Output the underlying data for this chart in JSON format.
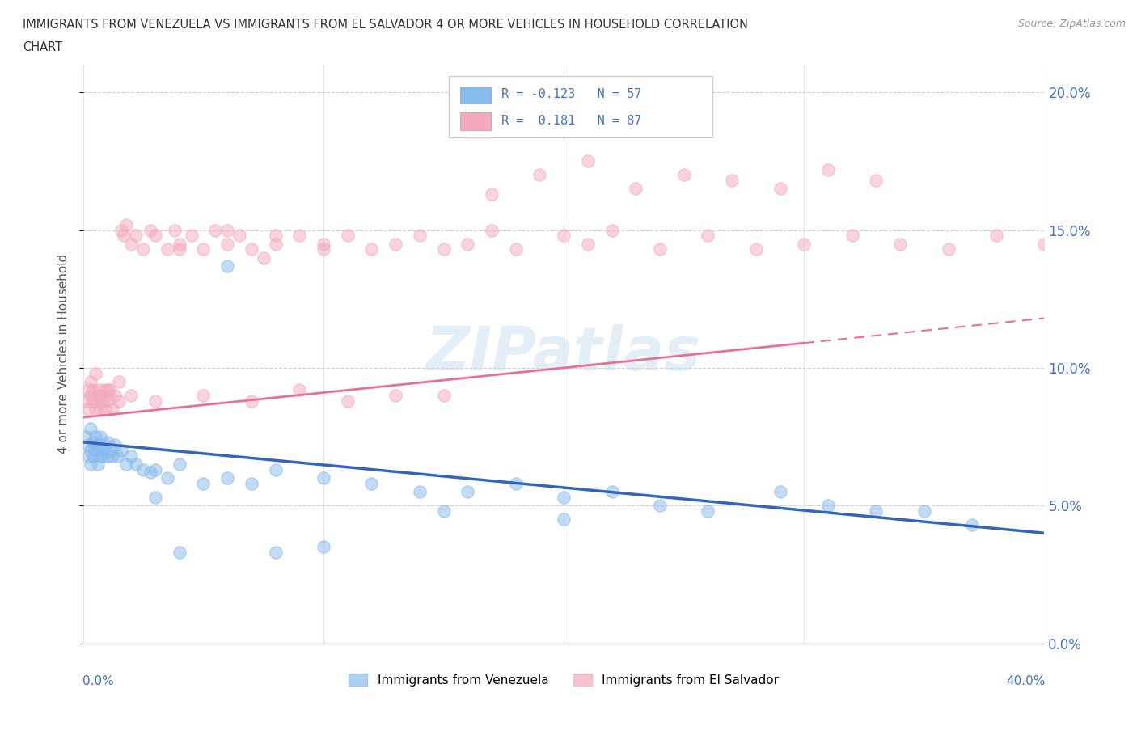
{
  "title_line1": "IMMIGRANTS FROM VENEZUELA VS IMMIGRANTS FROM EL SALVADOR 4 OR MORE VEHICLES IN HOUSEHOLD CORRELATION",
  "title_line2": "CHART",
  "source": "Source: ZipAtlas.com",
  "ylabel_label": "4 or more Vehicles in Household",
  "xmin": 0.0,
  "xmax": 0.4,
  "ymin": 0.0,
  "ymax": 0.21,
  "yticks": [
    0.0,
    0.05,
    0.1,
    0.15,
    0.2
  ],
  "ytick_labels": [
    "0.0%",
    "5.0%",
    "10.0%",
    "15.0%",
    "20.0%"
  ],
  "blue_color": "#88BBEE",
  "pink_color": "#F4AABC",
  "blue_line_color": "#3366BB",
  "pink_line_color": "#E87090",
  "legend_blue_label": "Immigrants from Venezuela",
  "legend_pink_label": "Immigrants from El Salvador",
  "watermark": "ZIPatlas",
  "grid_color": "#cccccc",
  "background_color": "#ffffff",
  "blue_R": -0.123,
  "blue_N": 57,
  "pink_R": 0.181,
  "pink_N": 87,
  "blue_trend_start": 0.073,
  "blue_trend_end": 0.04,
  "pink_trend_start": 0.082,
  "pink_trend_end": 0.118,
  "blue_x": [
    0.001,
    0.002,
    0.002,
    0.003,
    0.003,
    0.003,
    0.004,
    0.004,
    0.005,
    0.005,
    0.006,
    0.006,
    0.007,
    0.007,
    0.008,
    0.008,
    0.009,
    0.01,
    0.01,
    0.011,
    0.012,
    0.013,
    0.014,
    0.016,
    0.018,
    0.02,
    0.022,
    0.025,
    0.028,
    0.03,
    0.035,
    0.04,
    0.05,
    0.06,
    0.07,
    0.08,
    0.1,
    0.12,
    0.14,
    0.16,
    0.18,
    0.2,
    0.22,
    0.24,
    0.26,
    0.29,
    0.31,
    0.33,
    0.35,
    0.37,
    0.06,
    0.03,
    0.15,
    0.2,
    0.1,
    0.08,
    0.04
  ],
  "blue_y": [
    0.075,
    0.072,
    0.068,
    0.07,
    0.065,
    0.078,
    0.068,
    0.073,
    0.07,
    0.075,
    0.072,
    0.065,
    0.068,
    0.075,
    0.07,
    0.068,
    0.072,
    0.068,
    0.073,
    0.07,
    0.068,
    0.072,
    0.068,
    0.07,
    0.065,
    0.068,
    0.065,
    0.063,
    0.062,
    0.063,
    0.06,
    0.065,
    0.058,
    0.06,
    0.058,
    0.063,
    0.06,
    0.058,
    0.055,
    0.055,
    0.058,
    0.053,
    0.055,
    0.05,
    0.048,
    0.055,
    0.05,
    0.048,
    0.048,
    0.043,
    0.137,
    0.053,
    0.048,
    0.045,
    0.035,
    0.033,
    0.033
  ],
  "pink_x": [
    0.001,
    0.002,
    0.002,
    0.003,
    0.003,
    0.004,
    0.004,
    0.005,
    0.005,
    0.006,
    0.006,
    0.007,
    0.007,
    0.008,
    0.008,
    0.009,
    0.009,
    0.01,
    0.01,
    0.011,
    0.012,
    0.013,
    0.015,
    0.016,
    0.017,
    0.018,
    0.02,
    0.022,
    0.025,
    0.028,
    0.03,
    0.035,
    0.038,
    0.04,
    0.045,
    0.05,
    0.055,
    0.06,
    0.065,
    0.07,
    0.075,
    0.08,
    0.09,
    0.1,
    0.11,
    0.12,
    0.13,
    0.14,
    0.15,
    0.16,
    0.17,
    0.18,
    0.2,
    0.21,
    0.22,
    0.24,
    0.26,
    0.28,
    0.3,
    0.32,
    0.34,
    0.36,
    0.38,
    0.4,
    0.04,
    0.06,
    0.08,
    0.1,
    0.02,
    0.015,
    0.01,
    0.03,
    0.05,
    0.07,
    0.09,
    0.11,
    0.13,
    0.15,
    0.17,
    0.19,
    0.21,
    0.23,
    0.25,
    0.27,
    0.29,
    0.31,
    0.33
  ],
  "pink_y": [
    0.088,
    0.092,
    0.085,
    0.09,
    0.095,
    0.088,
    0.092,
    0.085,
    0.098,
    0.09,
    0.088,
    0.092,
    0.085,
    0.09,
    0.088,
    0.092,
    0.085,
    0.09,
    0.088,
    0.092,
    0.085,
    0.09,
    0.095,
    0.15,
    0.148,
    0.152,
    0.145,
    0.148,
    0.143,
    0.15,
    0.148,
    0.143,
    0.15,
    0.145,
    0.148,
    0.143,
    0.15,
    0.145,
    0.148,
    0.143,
    0.14,
    0.145,
    0.148,
    0.143,
    0.148,
    0.143,
    0.145,
    0.148,
    0.143,
    0.145,
    0.15,
    0.143,
    0.148,
    0.145,
    0.15,
    0.143,
    0.148,
    0.143,
    0.145,
    0.148,
    0.145,
    0.143,
    0.148,
    0.145,
    0.143,
    0.15,
    0.148,
    0.145,
    0.09,
    0.088,
    0.092,
    0.088,
    0.09,
    0.088,
    0.092,
    0.088,
    0.09,
    0.09,
    0.163,
    0.17,
    0.175,
    0.165,
    0.17,
    0.168,
    0.165,
    0.172,
    0.168
  ]
}
